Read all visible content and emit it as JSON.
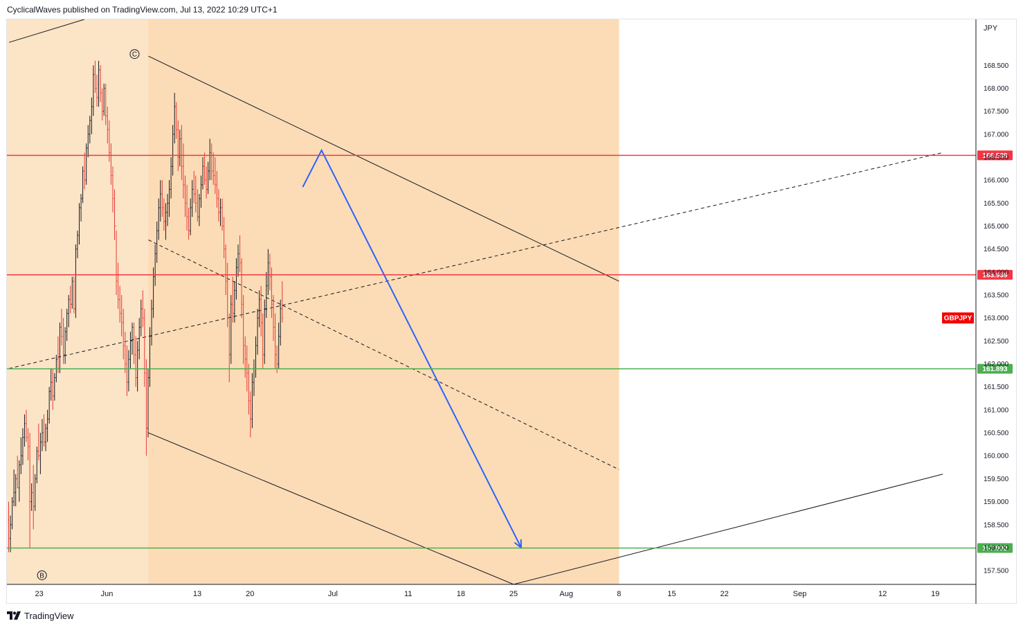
{
  "header": {
    "publisher_text": "CyclicalWaves published on TradingView.com, Jul 13, 2022 10:29 UTC+1"
  },
  "footer": {
    "brand": "TradingView"
  },
  "colors": {
    "up_candle": "#131722",
    "down_candle": "#e53935",
    "resistance": "#f23645",
    "support": "#4caf50",
    "projection": "#2962ff",
    "zone_fill": "#fbd6a9",
    "background_fill": "#fce4c6",
    "symbol_badge": "#f20505"
  },
  "chart_data": {
    "type": "candlestick",
    "symbol": "GBPJPY",
    "currency_label": "JPY",
    "y_range": [
      157.2,
      169.5
    ],
    "y_ticks": [
      "168.500",
      "168.000",
      "167.500",
      "167.000",
      "166.500",
      "166.000",
      "165.500",
      "165.000",
      "164.500",
      "164.000",
      "163.500",
      "163.000",
      "162.500",
      "162.000",
      "161.500",
      "161.000",
      "160.500",
      "160.000",
      "159.500",
      "159.000",
      "158.500",
      "158.000",
      "157.500"
    ],
    "x_ticks": [
      {
        "label": "23",
        "day": -9
      },
      {
        "label": "Jun",
        "day": 0
      },
      {
        "label": "13",
        "day": 12
      },
      {
        "label": "20",
        "day": 19
      },
      {
        "label": "Jul",
        "day": 30
      },
      {
        "label": "11",
        "day": 40
      },
      {
        "label": "18",
        "day": 47
      },
      {
        "label": "25",
        "day": 54
      },
      {
        "label": "Aug",
        "day": 61
      },
      {
        "label": "8",
        "day": 68
      },
      {
        "label": "15",
        "day": 75
      },
      {
        "label": "22",
        "day": 82
      },
      {
        "label": "Sep",
        "day": 92
      },
      {
        "label": "12",
        "day": 103
      },
      {
        "label": "19",
        "day": 110
      }
    ],
    "candles": [
      [
        158.6,
        159.0,
        157.9,
        158.2
      ],
      [
        158.2,
        158.7,
        157.9,
        158.5
      ],
      [
        158.5,
        159.1,
        158.4,
        159.0
      ],
      [
        159.0,
        159.7,
        158.9,
        159.2
      ],
      [
        159.2,
        159.6,
        158.9,
        159.5
      ],
      [
        159.5,
        160.0,
        159.3,
        159.3
      ],
      [
        159.3,
        159.9,
        159.0,
        159.8
      ],
      [
        159.8,
        160.4,
        159.6,
        160.0
      ],
      [
        160.0,
        160.6,
        159.8,
        160.4
      ],
      [
        160.4,
        160.9,
        160.2,
        160.7
      ],
      [
        160.7,
        161.0,
        160.3,
        160.4
      ],
      [
        160.4,
        160.6,
        159.9,
        160.2
      ],
      [
        160.2,
        160.5,
        158.0,
        159.0
      ],
      [
        159.0,
        159.4,
        158.8,
        159.2
      ],
      [
        159.2,
        159.8,
        158.4,
        158.9
      ],
      [
        158.9,
        159.6,
        158.8,
        159.5
      ],
      [
        159.5,
        160.2,
        159.4,
        160.1
      ],
      [
        160.1,
        160.7,
        159.9,
        160.0
      ],
      [
        160.0,
        160.5,
        159.6,
        160.3
      ],
      [
        160.3,
        160.8,
        160.1,
        160.5
      ],
      [
        160.5,
        160.9,
        160.2,
        160.3
      ],
      [
        160.3,
        160.7,
        160.1,
        160.6
      ],
      [
        160.6,
        161.0,
        160.3,
        160.8
      ],
      [
        160.8,
        161.5,
        160.7,
        161.4
      ],
      [
        161.4,
        161.9,
        161.2,
        161.6
      ],
      [
        161.6,
        161.9,
        161.0,
        161.3
      ],
      [
        161.3,
        161.8,
        161.2,
        161.7
      ],
      [
        161.7,
        162.2,
        161.6,
        162.1
      ],
      [
        162.1,
        162.6,
        161.8,
        161.9
      ],
      [
        161.9,
        162.9,
        161.8,
        162.8
      ],
      [
        162.8,
        163.2,
        162.4,
        162.6
      ],
      [
        162.6,
        163.0,
        162.0,
        162.2
      ],
      [
        162.2,
        162.8,
        162.0,
        162.7
      ],
      [
        162.7,
        163.2,
        162.5,
        163.1
      ],
      [
        163.1,
        163.5,
        162.8,
        163.4
      ],
      [
        163.4,
        163.7,
        163.1,
        163.3
      ],
      [
        163.3,
        163.9,
        163.2,
        163.8
      ],
      [
        163.8,
        163.9,
        163.1,
        163.2
      ],
      [
        163.2,
        164.6,
        163.0,
        164.5
      ],
      [
        164.5,
        164.9,
        164.3,
        164.8
      ],
      [
        164.8,
        165.5,
        164.6,
        165.4
      ],
      [
        165.4,
        165.7,
        165.1,
        165.6
      ],
      [
        165.6,
        166.3,
        165.5,
        166.2
      ],
      [
        166.2,
        166.6,
        165.8,
        166.0
      ],
      [
        166.0,
        166.8,
        165.9,
        166.7
      ],
      [
        166.7,
        167.2,
        166.5,
        167.0
      ],
      [
        167.0,
        167.4,
        166.8,
        167.3
      ],
      [
        167.3,
        167.8,
        167.0,
        167.6
      ],
      [
        167.6,
        168.5,
        167.4,
        168.3
      ],
      [
        168.3,
        168.6,
        167.9,
        168.0
      ],
      [
        168.0,
        168.3,
        167.6,
        167.8
      ],
      [
        167.8,
        168.6,
        167.6,
        168.4
      ],
      [
        168.4,
        168.5,
        167.7,
        167.9
      ],
      [
        167.9,
        168.0,
        167.3,
        167.5
      ],
      [
        167.5,
        168.1,
        167.4,
        168.0
      ],
      [
        168.0,
        168.1,
        167.2,
        167.4
      ],
      [
        167.4,
        167.6,
        166.8,
        167.1
      ],
      [
        167.1,
        167.3,
        166.4,
        166.6
      ],
      [
        166.6,
        166.8,
        165.9,
        166.1
      ],
      [
        166.1,
        166.3,
        165.3,
        165.6
      ],
      [
        165.6,
        165.8,
        164.7,
        165.0
      ],
      [
        165.0,
        164.9,
        163.5,
        163.8
      ],
      [
        163.8,
        164.2,
        163.2,
        163.4
      ],
      [
        163.4,
        163.7,
        162.9,
        163.1
      ],
      [
        163.1,
        163.5,
        162.6,
        162.9
      ],
      [
        162.9,
        163.2,
        162.1,
        162.4
      ],
      [
        162.4,
        162.7,
        161.8,
        162.0
      ],
      [
        162.0,
        162.4,
        161.3,
        161.6
      ],
      [
        161.6,
        162.3,
        161.4,
        162.1
      ],
      [
        162.1,
        162.7,
        161.9,
        162.5
      ],
      [
        162.5,
        162.9,
        162.2,
        162.8
      ],
      [
        162.8,
        162.9,
        162.0,
        162.2
      ],
      [
        162.2,
        162.6,
        161.5,
        161.7
      ],
      [
        161.7,
        162.5,
        161.4,
        162.3
      ],
      [
        162.3,
        163.0,
        162.1,
        162.8
      ],
      [
        162.8,
        163.4,
        162.6,
        163.2
      ],
      [
        163.2,
        163.6,
        162.8,
        163.0
      ],
      [
        163.0,
        163.2,
        161.5,
        161.8
      ],
      [
        161.8,
        162.1,
        160.0,
        160.6
      ],
      [
        160.6,
        161.9,
        160.4,
        161.7
      ],
      [
        161.7,
        162.8,
        161.5,
        162.6
      ],
      [
        162.6,
        163.4,
        162.4,
        163.2
      ],
      [
        163.2,
        164.1,
        163.0,
        163.9
      ],
      [
        163.9,
        164.6,
        163.7,
        164.4
      ],
      [
        164.4,
        165.1,
        164.2,
        164.9
      ],
      [
        164.9,
        165.6,
        164.7,
        165.4
      ],
      [
        165.4,
        166.0,
        165.1,
        165.7
      ],
      [
        165.7,
        166.0,
        165.2,
        165.4
      ],
      [
        165.4,
        165.6,
        164.9,
        165.1
      ],
      [
        165.1,
        165.5,
        164.7,
        165.3
      ],
      [
        165.3,
        165.7,
        165.0,
        165.5
      ],
      [
        165.5,
        166.0,
        165.2,
        165.8
      ],
      [
        165.8,
        166.5,
        165.6,
        166.3
      ],
      [
        166.3,
        167.2,
        166.1,
        167.0
      ],
      [
        167.0,
        167.9,
        166.8,
        167.6
      ],
      [
        167.6,
        167.7,
        166.9,
        167.1
      ],
      [
        167.1,
        167.3,
        166.2,
        166.5
      ],
      [
        166.5,
        167.1,
        166.3,
        166.9
      ],
      [
        166.9,
        167.2,
        166.0,
        166.3
      ],
      [
        166.3,
        166.8,
        165.6,
        165.9
      ],
      [
        165.9,
        166.1,
        165.2,
        165.5
      ],
      [
        165.5,
        165.9,
        164.9,
        165.2
      ],
      [
        165.2,
        165.4,
        164.7,
        164.9
      ],
      [
        164.9,
        165.6,
        164.8,
        165.4
      ],
      [
        165.4,
        166.0,
        165.2,
        165.8
      ],
      [
        165.8,
        166.2,
        165.5,
        165.7
      ],
      [
        165.7,
        166.1,
        165.3,
        165.5
      ],
      [
        165.5,
        165.8,
        165.1,
        165.2
      ],
      [
        165.2,
        165.7,
        165.0,
        165.6
      ],
      [
        165.6,
        166.1,
        165.4,
        165.9
      ],
      [
        165.9,
        166.5,
        165.8,
        166.3
      ],
      [
        166.3,
        166.6,
        165.9,
        166.0
      ],
      [
        166.0,
        166.3,
        165.6,
        165.8
      ],
      [
        165.8,
        166.4,
        165.7,
        166.2
      ],
      [
        166.2,
        166.9,
        166.0,
        166.6
      ],
      [
        166.6,
        166.8,
        166.0,
        166.2
      ],
      [
        166.2,
        166.6,
        165.9,
        166.1
      ],
      [
        166.1,
        166.5,
        165.7,
        165.9
      ],
      [
        165.9,
        166.2,
        165.4,
        165.6
      ],
      [
        165.6,
        165.8,
        165.1,
        165.3
      ],
      [
        165.3,
        165.6,
        165.0,
        165.4
      ],
      [
        165.4,
        165.6,
        164.9,
        165.0
      ],
      [
        165.0,
        165.2,
        164.3,
        164.5
      ],
      [
        164.5,
        164.6,
        163.5,
        163.8
      ],
      [
        163.8,
        164.2,
        162.8,
        163.0
      ],
      [
        163.0,
        163.1,
        161.6,
        162.2
      ],
      [
        162.2,
        163.5,
        162.0,
        163.3
      ],
      [
        163.3,
        163.9,
        162.9,
        163.1
      ],
      [
        163.1,
        163.8,
        162.9,
        163.6
      ],
      [
        163.6,
        164.3,
        163.4,
        164.1
      ],
      [
        164.1,
        164.6,
        163.9,
        164.4
      ],
      [
        164.4,
        164.8,
        164.0,
        164.2
      ],
      [
        164.2,
        164.3,
        163.0,
        163.3
      ],
      [
        163.3,
        163.5,
        162.0,
        162.4
      ],
      [
        162.4,
        162.6,
        161.7,
        162.1
      ],
      [
        162.1,
        162.4,
        161.4,
        161.8
      ],
      [
        161.8,
        162.0,
        160.9,
        161.2
      ],
      [
        161.2,
        161.4,
        160.4,
        160.8
      ],
      [
        160.8,
        161.8,
        160.6,
        161.6
      ],
      [
        161.6,
        162.1,
        161.3,
        161.9
      ],
      [
        161.9,
        162.6,
        161.7,
        162.4
      ],
      [
        162.4,
        163.2,
        162.2,
        163.0
      ],
      [
        163.0,
        163.6,
        162.8,
        163.4
      ],
      [
        163.4,
        163.7,
        162.6,
        162.9
      ],
      [
        162.9,
        163.1,
        161.9,
        162.2
      ],
      [
        162.2,
        163.4,
        162.0,
        163.2
      ],
      [
        163.2,
        164.0,
        163.0,
        163.7
      ],
      [
        163.7,
        164.5,
        163.5,
        164.2
      ],
      [
        164.2,
        164.4,
        163.6,
        163.9
      ],
      [
        163.9,
        164.1,
        163.0,
        163.3
      ],
      [
        163.3,
        163.5,
        162.5,
        162.8
      ],
      [
        162.8,
        163.1,
        161.9,
        162.2
      ],
      [
        162.2,
        162.4,
        161.8,
        162.0
      ],
      [
        162.0,
        162.9,
        161.9,
        162.6
      ],
      [
        162.6,
        163.4,
        162.4,
        163.2
      ],
      [
        163.2,
        163.8,
        162.9,
        163.0
      ]
    ],
    "horizontal_levels": [
      {
        "value": 166.539,
        "label": "166.539",
        "role": "resistance"
      },
      {
        "value": 163.939,
        "label": "163.939",
        "role": "resistance"
      },
      {
        "value": 161.893,
        "label": "161.893",
        "role": "support"
      },
      {
        "value": 157.992,
        "label": "157.992",
        "role": "support"
      }
    ],
    "last_price_label": "GBPJPY",
    "last_price": 163.0,
    "wave_labels": [
      {
        "label": "C",
        "day": 4.5,
        "value": 168.7,
        "position": "above"
      },
      {
        "label": "B",
        "day": -7.8,
        "value": 157.7,
        "position": "below"
      }
    ],
    "trend_lines": [
      {
        "style": "solid",
        "from": [
          -13,
          169.0
        ],
        "to": [
          -3,
          169.5
        ]
      },
      {
        "style": "solid",
        "from": [
          5.5,
          168.7
        ],
        "to": [
          68,
          163.8
        ]
      },
      {
        "style": "solid",
        "from": [
          5.5,
          160.5
        ],
        "to": [
          54,
          157.2
        ]
      },
      {
        "style": "dashed",
        "from": [
          5.5,
          164.7
        ],
        "to": [
          68,
          159.7
        ]
      },
      {
        "style": "dashed",
        "from": [
          -13,
          161.9
        ],
        "to": [
          111,
          166.6
        ]
      },
      {
        "style": "solid",
        "from": [
          54,
          157.2
        ],
        "to": [
          111,
          159.6
        ]
      }
    ],
    "projection_path": [
      [
        26,
        165.85
      ],
      [
        28.5,
        166.65
      ],
      [
        55,
        158.0
      ]
    ],
    "channel_zone": {
      "from_day": 5.5,
      "to_day": 68
    }
  }
}
